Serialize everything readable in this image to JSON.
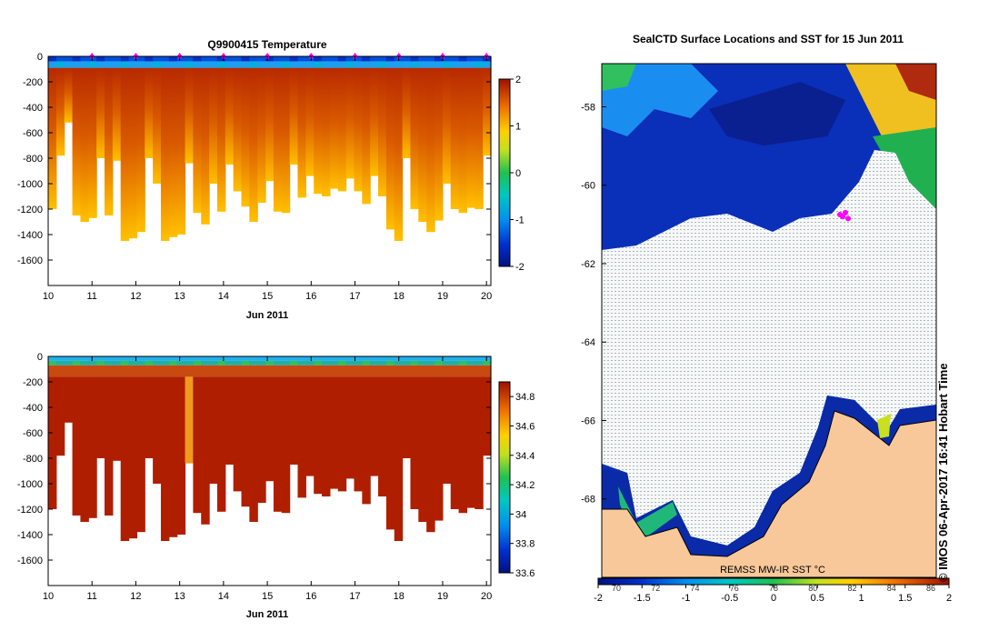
{
  "chart_data": [
    {
      "type": "heatmap",
      "title": "Q9900415  Temperature",
      "xlabel": "Jun 2011",
      "ylabel": "",
      "x_ticks": [
        10,
        11,
        12,
        13,
        14,
        15,
        16,
        17,
        18,
        19,
        20
      ],
      "y_ticks": [
        0,
        -200,
        -400,
        -600,
        -800,
        -1000,
        -1200,
        -1400,
        -1600
      ],
      "xlim": [
        10,
        20.1
      ],
      "ylim": [
        -1800,
        0
      ],
      "colorbar": {
        "min": -2,
        "max": 2,
        "ticks": [
          2,
          1,
          0,
          -1,
          -2
        ]
      },
      "surfacing_markers_x": [
        11,
        12,
        13,
        14,
        15,
        16,
        17,
        18,
        19,
        20
      ],
      "profile_max_depth": [
        -1200,
        -780,
        -520,
        -1250,
        -1300,
        -1270,
        -800,
        -1250,
        -820,
        -1450,
        -1430,
        -1380,
        -800,
        -1000,
        -1450,
        -1420,
        -1400,
        -840,
        -1230,
        -1320,
        -1000,
        -1220,
        -850,
        -1060,
        -1180,
        -1300,
        -1150,
        -980,
        -1220,
        -1230,
        -850,
        -1110,
        -940,
        -1080,
        -1100,
        -1040,
        -1060,
        -960,
        -1060,
        -1160,
        -940,
        -1100,
        -1360,
        -1450,
        -800,
        -1200,
        -1300,
        -1380,
        -1290,
        -1000,
        -1200,
        -1230,
        -1190,
        -1200,
        -780
      ]
    },
    {
      "type": "heatmap",
      "title": "",
      "xlabel": "Jun 2011",
      "ylabel": "",
      "x_ticks": [
        10,
        11,
        12,
        13,
        14,
        15,
        16,
        17,
        18,
        19,
        20
      ],
      "y_ticks": [
        0,
        -200,
        -400,
        -600,
        -800,
        -1000,
        -1200,
        -1400,
        -1600
      ],
      "xlim": [
        10,
        20.1
      ],
      "ylim": [
        -1800,
        0
      ],
      "colorbar": {
        "min": 33.6,
        "max": 34.9,
        "ticks": [
          34.8,
          34.6,
          34.4,
          34.2,
          34,
          33.8,
          33.6
        ]
      },
      "profile_max_depth": [
        -1200,
        -780,
        -520,
        -1250,
        -1300,
        -1270,
        -800,
        -1250,
        -820,
        -1450,
        -1430,
        -1380,
        -800,
        -1000,
        -1450,
        -1420,
        -1400,
        -840,
        -1230,
        -1320,
        -1000,
        -1220,
        -850,
        -1060,
        -1180,
        -1300,
        -1150,
        -980,
        -1220,
        -1230,
        -850,
        -1110,
        -940,
        -1080,
        -1100,
        -1040,
        -1060,
        -960,
        -1060,
        -1160,
        -940,
        -1100,
        -1360,
        -1450,
        -800,
        -1200,
        -1300,
        -1380,
        -1290,
        -1000,
        -1200,
        -1230,
        -1190,
        -1200,
        -780
      ],
      "anomalous_profile_x": 13.15
    },
    {
      "type": "heatmap",
      "title": "SealCTD Surface Locations and SST for 15 Jun 2011",
      "xlabel": "",
      "ylabel": "",
      "y_ticks": [
        -58,
        -60,
        -62,
        -64,
        -66,
        -68
      ],
      "ylim": [
        -70,
        -56.9
      ],
      "colorbar": {
        "label": "REMSS MW-IR SST °C",
        "min": -2,
        "max": 2,
        "ticks": [
          -2,
          -1.5,
          -1,
          -0.5,
          0,
          0.5,
          1,
          1.5,
          2
        ],
        "secondary_ticks": [
          "70",
          "72",
          "74",
          "76",
          "78",
          "80",
          "82",
          "84",
          "86"
        ]
      },
      "seal_track_lat": [
        -60.75,
        -60.8,
        -60.7,
        -60.85
      ]
    }
  ],
  "credit": "IMOS 06-Apr-2017 16:41 Hobart Time",
  "copyright": "©"
}
